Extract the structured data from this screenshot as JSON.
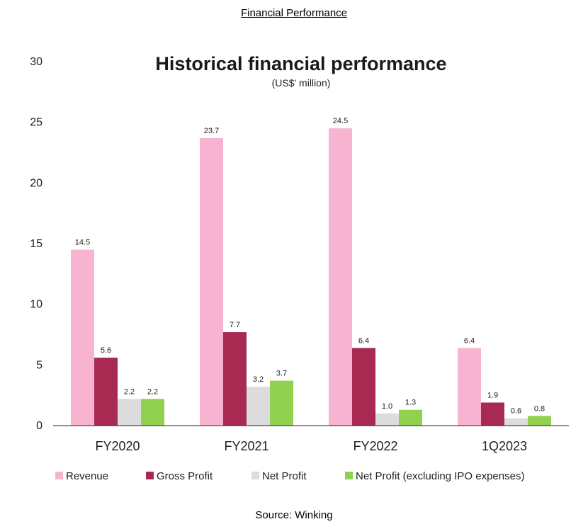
{
  "page": {
    "heading": "Financial Performance",
    "source": "Source: Winking"
  },
  "chart_data": {
    "type": "bar",
    "title": "Historical financial performance",
    "subtitle": "(US$' million)",
    "xlabel": "",
    "ylabel": "",
    "ylim": [
      0,
      30
    ],
    "yticks": [
      0,
      5,
      10,
      15,
      20,
      25,
      30
    ],
    "grid": false,
    "legend_position": "bottom",
    "categories": [
      "FY2020",
      "FY2021",
      "FY2022",
      "1Q2023"
    ],
    "series": [
      {
        "name": "Revenue",
        "color": "#f7b3cf",
        "values": [
          14.5,
          23.7,
          24.5,
          6.4
        ],
        "labels": [
          "14.5",
          "23.7",
          "24.5",
          "6.4"
        ]
      },
      {
        "name": "Gross Profit",
        "color": "#a82a52",
        "values": [
          5.6,
          7.7,
          6.4,
          1.9
        ],
        "labels": [
          "5.6",
          "7.7",
          "6.4",
          "1.9"
        ]
      },
      {
        "name": "Net Profit",
        "color": "#dcdcdc",
        "values": [
          2.2,
          3.2,
          1.0,
          0.6
        ],
        "labels": [
          "2.2",
          "3.2",
          "1.0",
          "0.6"
        ]
      },
      {
        "name": "Net Profit (excluding IPO expenses)",
        "color": "#92d050",
        "values": [
          2.2,
          3.7,
          1.3,
          0.8
        ],
        "labels": [
          "2.2",
          "3.7",
          "1.3",
          "0.8"
        ]
      }
    ]
  }
}
